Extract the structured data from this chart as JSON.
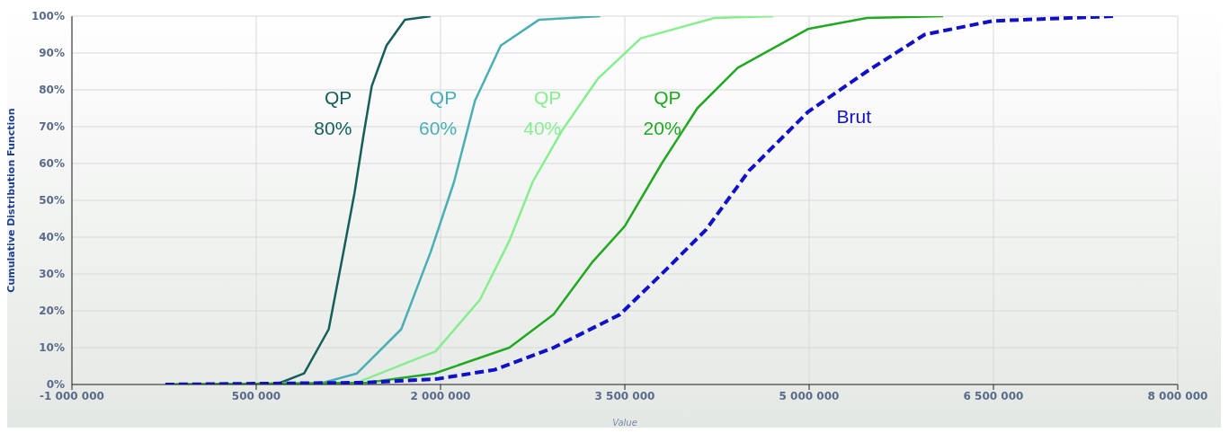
{
  "chart_data": {
    "type": "line",
    "xlabel": "Value",
    "ylabel": "Cumulative Distribution Function",
    "xlim": [
      -1000000,
      8000000
    ],
    "xticks": [
      {
        "value": -1000000,
        "label": "-1 000 000"
      },
      {
        "value": 500000,
        "label": "500 000"
      },
      {
        "value": 2000000,
        "label": "2 000 000"
      },
      {
        "value": 3500000,
        "label": "3 500 000"
      },
      {
        "value": 5000000,
        "label": "5 000 000"
      },
      {
        "value": 6500000,
        "label": "6 500 000"
      },
      {
        "value": 8000000,
        "label": "8 000 000"
      }
    ],
    "ylim": [
      0,
      100
    ],
    "yticks": [
      {
        "value": 0,
        "label": "0%"
      },
      {
        "value": 10,
        "label": "10%"
      },
      {
        "value": 20,
        "label": "20%"
      },
      {
        "value": 30,
        "label": "30%"
      },
      {
        "value": 40,
        "label": "40%"
      },
      {
        "value": 50,
        "label": "50%"
      },
      {
        "value": 60,
        "label": "60%"
      },
      {
        "value": 70,
        "label": "70%"
      },
      {
        "value": 80,
        "label": "80%"
      },
      {
        "value": 90,
        "label": "90%"
      },
      {
        "value": 100,
        "label": "100%"
      }
    ],
    "grid": true,
    "legend": false,
    "marker": "none",
    "series": [
      {
        "name": "QP 80%",
        "color": "#155e5a",
        "line_style": "solid",
        "x": [
          -200000,
          660000,
          890000,
          1090000,
          1210000,
          1300000,
          1370000,
          1440000,
          1560000,
          1710000,
          1920000
        ],
        "values": [
          0,
          0,
          3,
          15,
          36,
          52,
          67,
          81,
          92,
          99,
          100
        ]
      },
      {
        "name": "QP 60%",
        "color": "#4aaeb5",
        "line_style": "solid",
        "x": [
          -200000,
          990000,
          1320000,
          1680000,
          1920000,
          2110000,
          2280000,
          2490000,
          2800000,
          3300000
        ],
        "values": [
          0,
          0,
          3,
          15,
          36,
          55,
          77,
          92,
          99,
          100
        ]
      },
      {
        "name": "QP 40%",
        "color": "#86ee8f",
        "line_style": "solid",
        "x": [
          -200000,
          1320000,
          1960000,
          2320000,
          2560000,
          2750000,
          2990000,
          3280000,
          3630000,
          4230000,
          4710000
        ],
        "values": [
          0,
          0.5,
          9,
          23,
          39,
          55,
          69,
          83,
          94,
          99.5,
          100
        ]
      },
      {
        "name": "QP 20%",
        "color": "#22a822",
        "line_style": "solid",
        "x": [
          -200000,
          1400000,
          1950000,
          2560000,
          2920000,
          3230000,
          3500000,
          3800000,
          4090000,
          4420000,
          4990000,
          5470000,
          6090000
        ],
        "values": [
          0,
          0.5,
          3,
          10,
          19,
          33,
          43,
          60,
          75,
          86,
          96.5,
          99.5,
          100
        ]
      },
      {
        "name": "Brut",
        "color": "#1010c8",
        "line_style": "dashed",
        "x": [
          -240000,
          1370000,
          1970000,
          2440000,
          2920000,
          3460000,
          3800000,
          4160000,
          4510000,
          4990000,
          5470000,
          5940000,
          6490000,
          7490000
        ],
        "values": [
          0,
          0.5,
          1.5,
          4,
          10,
          19,
          30,
          42,
          58,
          74,
          85,
          95,
          98.7,
          100
        ]
      }
    ]
  }
}
